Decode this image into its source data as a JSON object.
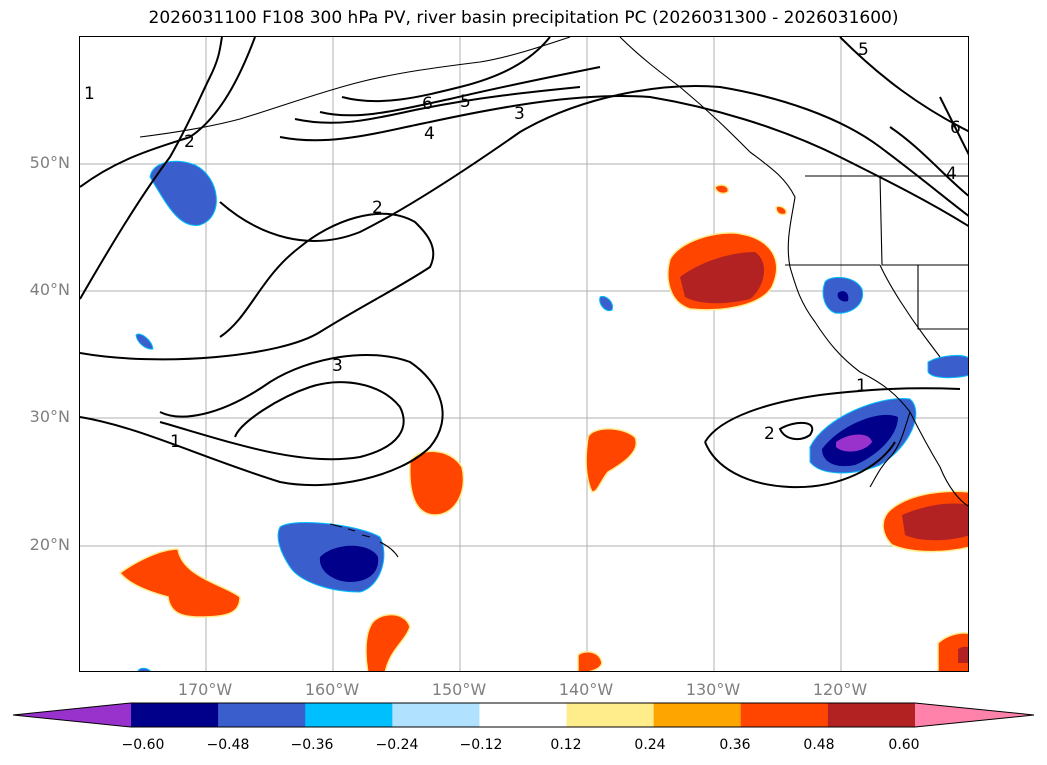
{
  "title": "2026031100 F108 300 hPa PV, river basin precipitation PC (2026031300 - 2026031600)",
  "lat_labels": [
    "50°N",
    "40°N",
    "30°N",
    "20°N"
  ],
  "lon_labels": [
    "170°W",
    "160°W",
    "150°W",
    "140°W",
    "130°W",
    "120°W"
  ],
  "contour_labels": [
    "1",
    "2",
    "3",
    "4",
    "5",
    "6",
    "2",
    "3",
    "1",
    "2",
    "1",
    "5",
    "6",
    "4"
  ],
  "colorbar": {
    "ticks": [
      "−0.60",
      "−0.48",
      "−0.36",
      "−0.24",
      "−0.12",
      "0.12",
      "0.24",
      "0.36",
      "0.48",
      "0.60"
    ],
    "colors": [
      "#9932cc",
      "#00008b",
      "#3a5fcd",
      "#00bfff",
      "#b0e2ff",
      "#ffffff",
      "#ffec8b",
      "#ffa500",
      "#ff4500",
      "#b22222",
      "#ff82ab"
    ]
  }
}
